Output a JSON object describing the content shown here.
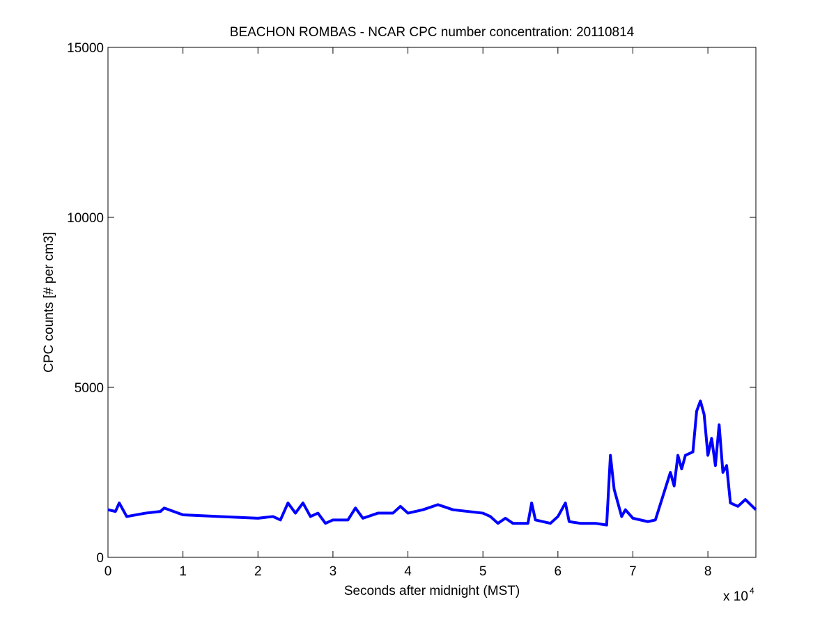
{
  "chart_data": {
    "type": "line",
    "title": "BEACHON ROMBAS - NCAR CPC number concentration: 20110814",
    "x_label": "Seconds after midnight (MST)",
    "y_label": "CPC counts [# per cm3]",
    "xtick_multiplier": {
      "base": "x 10",
      "exponent": "4"
    },
    "color": "#0000ff",
    "x": [
      0,
      1000,
      1500,
      2500,
      5000,
      7000,
      7500,
      10000,
      15000,
      20000,
      22000,
      23000,
      24000,
      25000,
      26000,
      27000,
      28000,
      29000,
      30000,
      32000,
      33000,
      34000,
      36000,
      38000,
      39000,
      40000,
      42000,
      44000,
      46000,
      50000,
      51000,
      52000,
      53000,
      54000,
      56000,
      56500,
      57000,
      59000,
      60000,
      61000,
      61500,
      63000,
      65000,
      66500,
      67000,
      67500,
      68000,
      68500,
      69000,
      70000,
      72000,
      73000,
      74000,
      75000,
      75500,
      76000,
      76500,
      77000,
      78000,
      78500,
      79000,
      79500,
      80000,
      80500,
      81000,
      81500,
      82000,
      82500,
      83000,
      84000,
      85000,
      86400
    ],
    "values": [
      1400,
      1350,
      1600,
      1200,
      1300,
      1350,
      1450,
      1250,
      1200,
      1150,
      1200,
      1100,
      1600,
      1300,
      1600,
      1200,
      1300,
      1000,
      1100,
      1100,
      1450,
      1150,
      1300,
      1300,
      1500,
      1300,
      1400,
      1550,
      1400,
      1300,
      1200,
      1000,
      1150,
      1000,
      1000,
      1600,
      1100,
      1000,
      1200,
      1600,
      1050,
      1000,
      1000,
      950,
      3000,
      2000,
      1600,
      1200,
      1400,
      1150,
      1050,
      1100,
      1800,
      2500,
      2100,
      3000,
      2600,
      3000,
      3100,
      4300,
      4600,
      4200,
      3000,
      3500,
      2700,
      3900,
      2500,
      2700,
      1600,
      1500,
      1700,
      1400
    ],
    "xlim": [
      0,
      86400
    ],
    "xticks": [
      {
        "value": 0,
        "label": "0"
      },
      {
        "value": 10000,
        "label": "1"
      },
      {
        "value": 20000,
        "label": "2"
      },
      {
        "value": 30000,
        "label": "3"
      },
      {
        "value": 40000,
        "label": "4"
      },
      {
        "value": 50000,
        "label": "5"
      },
      {
        "value": 60000,
        "label": "6"
      },
      {
        "value": 70000,
        "label": "7"
      },
      {
        "value": 80000,
        "label": "8"
      }
    ],
    "ylim": [
      0,
      15000
    ],
    "yticks": [
      0,
      5000,
      10000,
      15000
    ]
  }
}
